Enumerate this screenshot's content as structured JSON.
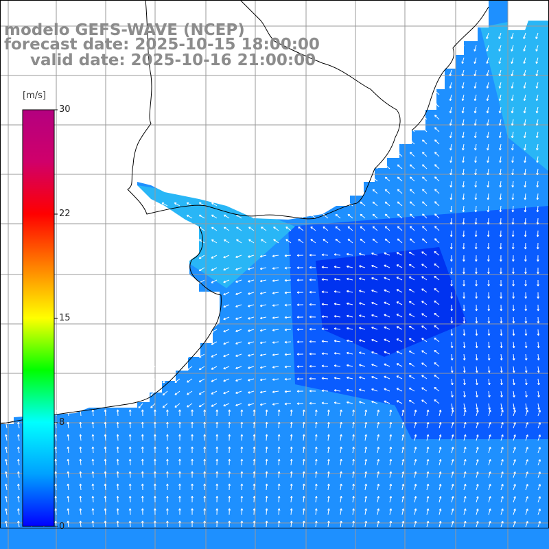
{
  "title": {
    "line1": "modelo GEFS-WAVE (NCEP)",
    "line2": "forecast date: 2025-10-15 18:00:00",
    "line3": "valid date: 2025-10-16 21:00:00"
  },
  "colorbar": {
    "unit": "[m/s]",
    "ticks": [
      "30",
      "22",
      "15",
      "8",
      "0"
    ],
    "colors": [
      "#0000ff",
      "#00a0ff",
      "#00ffff",
      "#00ff00",
      "#ffff00",
      "#ff8000",
      "#ff0000",
      "#d0006a",
      "#b40080"
    ]
  },
  "map": {
    "land_color": "#ffffff",
    "coastline_color": "#000000",
    "grid_color": "#999999",
    "arrow_color": "#ffffff",
    "field_colors": {
      "deep": "#0033f0",
      "mid": "#0a5cff",
      "light": "#1e90ff",
      "shelf": "#29b6f6"
    }
  }
}
